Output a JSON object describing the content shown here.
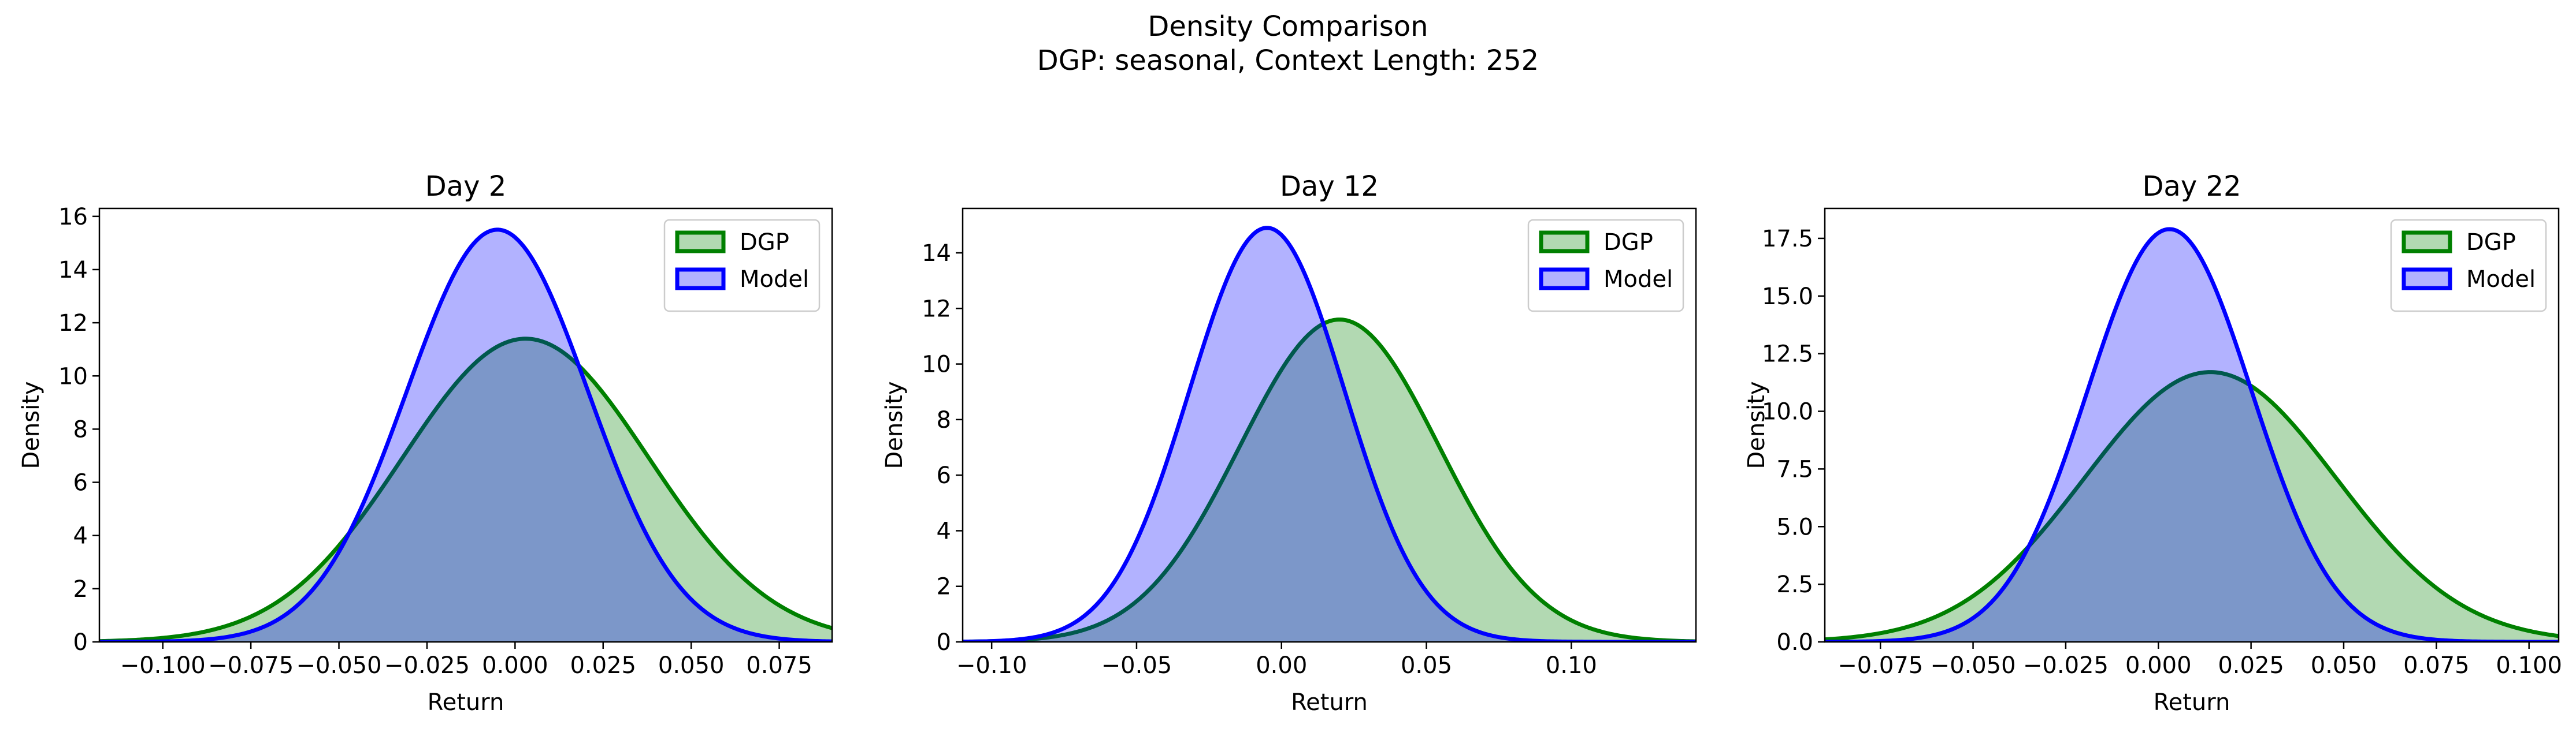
{
  "figure": {
    "title": "Density Comparison",
    "subtitle": "DGP: seasonal, Context Length: 252"
  },
  "colors": {
    "dgp_line": "#008000",
    "dgp_fill": "#008000",
    "model_line": "#0000ff",
    "model_fill": "#0000ff"
  },
  "chart_data": [
    {
      "type": "area",
      "title": "Day 2",
      "xlabel": "Return",
      "ylabel": "Density",
      "xlim": [
        -0.118,
        0.09
      ],
      "ylim": [
        0,
        16.3
      ],
      "xticks": [
        -0.1,
        -0.075,
        -0.05,
        -0.025,
        0.0,
        0.025,
        0.05,
        0.075
      ],
      "xtick_labels": [
        "−0.100",
        "−0.075",
        "−0.050",
        "−0.025",
        "0.000",
        "0.025",
        "0.050",
        "0.075"
      ],
      "yticks": [
        0,
        2,
        4,
        6,
        8,
        10,
        12,
        14,
        16
      ],
      "ytick_labels": [
        "0",
        "2",
        "4",
        "6",
        "8",
        "10",
        "12",
        "14",
        "16"
      ],
      "legend": "top-right",
      "series": [
        {
          "name": "DGP",
          "distribution": "normal",
          "mean": 0.003,
          "sd": 0.035,
          "peak": 11.4
        },
        {
          "name": "Model",
          "distribution": "normal",
          "mean": -0.005,
          "sd": 0.0258,
          "peak": 15.5
        }
      ]
    },
    {
      "type": "area",
      "title": "Day 12",
      "xlabel": "Return",
      "ylabel": "Density",
      "xlim": [
        -0.11,
        0.143
      ],
      "ylim": [
        0,
        15.6
      ],
      "xticks": [
        -0.1,
        -0.05,
        0.0,
        0.05,
        0.1
      ],
      "xtick_labels": [
        "−0.10",
        "−0.05",
        "0.00",
        "0.05",
        "0.10"
      ],
      "yticks": [
        0,
        2,
        4,
        6,
        8,
        10,
        12,
        14
      ],
      "ytick_labels": [
        "0",
        "2",
        "4",
        "6",
        "8",
        "10",
        "12",
        "14"
      ],
      "legend": "top-right",
      "series": [
        {
          "name": "DGP",
          "distribution": "normal",
          "mean": 0.02,
          "sd": 0.0344,
          "peak": 11.6
        },
        {
          "name": "Model",
          "distribution": "normal",
          "mean": -0.005,
          "sd": 0.0268,
          "peak": 14.9
        }
      ]
    },
    {
      "type": "area",
      "title": "Day 22",
      "xlabel": "Return",
      "ylabel": "Density",
      "xlim": [
        -0.09,
        0.108
      ],
      "ylim": [
        0,
        18.8
      ],
      "xticks": [
        -0.075,
        -0.05,
        -0.025,
        0.0,
        0.025,
        0.05,
        0.075,
        0.1
      ],
      "xtick_labels": [
        "−0.075",
        "−0.050",
        "−0.025",
        "0.000",
        "0.025",
        "0.050",
        "0.075",
        "0.100"
      ],
      "yticks": [
        0,
        2.5,
        5,
        7.5,
        10,
        12.5,
        15,
        17.5
      ],
      "ytick_labels": [
        "0.0",
        "2.5",
        "5.0",
        "7.5",
        "10.0",
        "12.5",
        "15.0",
        "17.5"
      ],
      "legend": "top-right",
      "series": [
        {
          "name": "DGP",
          "distribution": "normal",
          "mean": 0.014,
          "sd": 0.034,
          "peak": 11.7
        },
        {
          "name": "Model",
          "distribution": "normal",
          "mean": 0.003,
          "sd": 0.0222,
          "peak": 17.9
        }
      ]
    }
  ]
}
